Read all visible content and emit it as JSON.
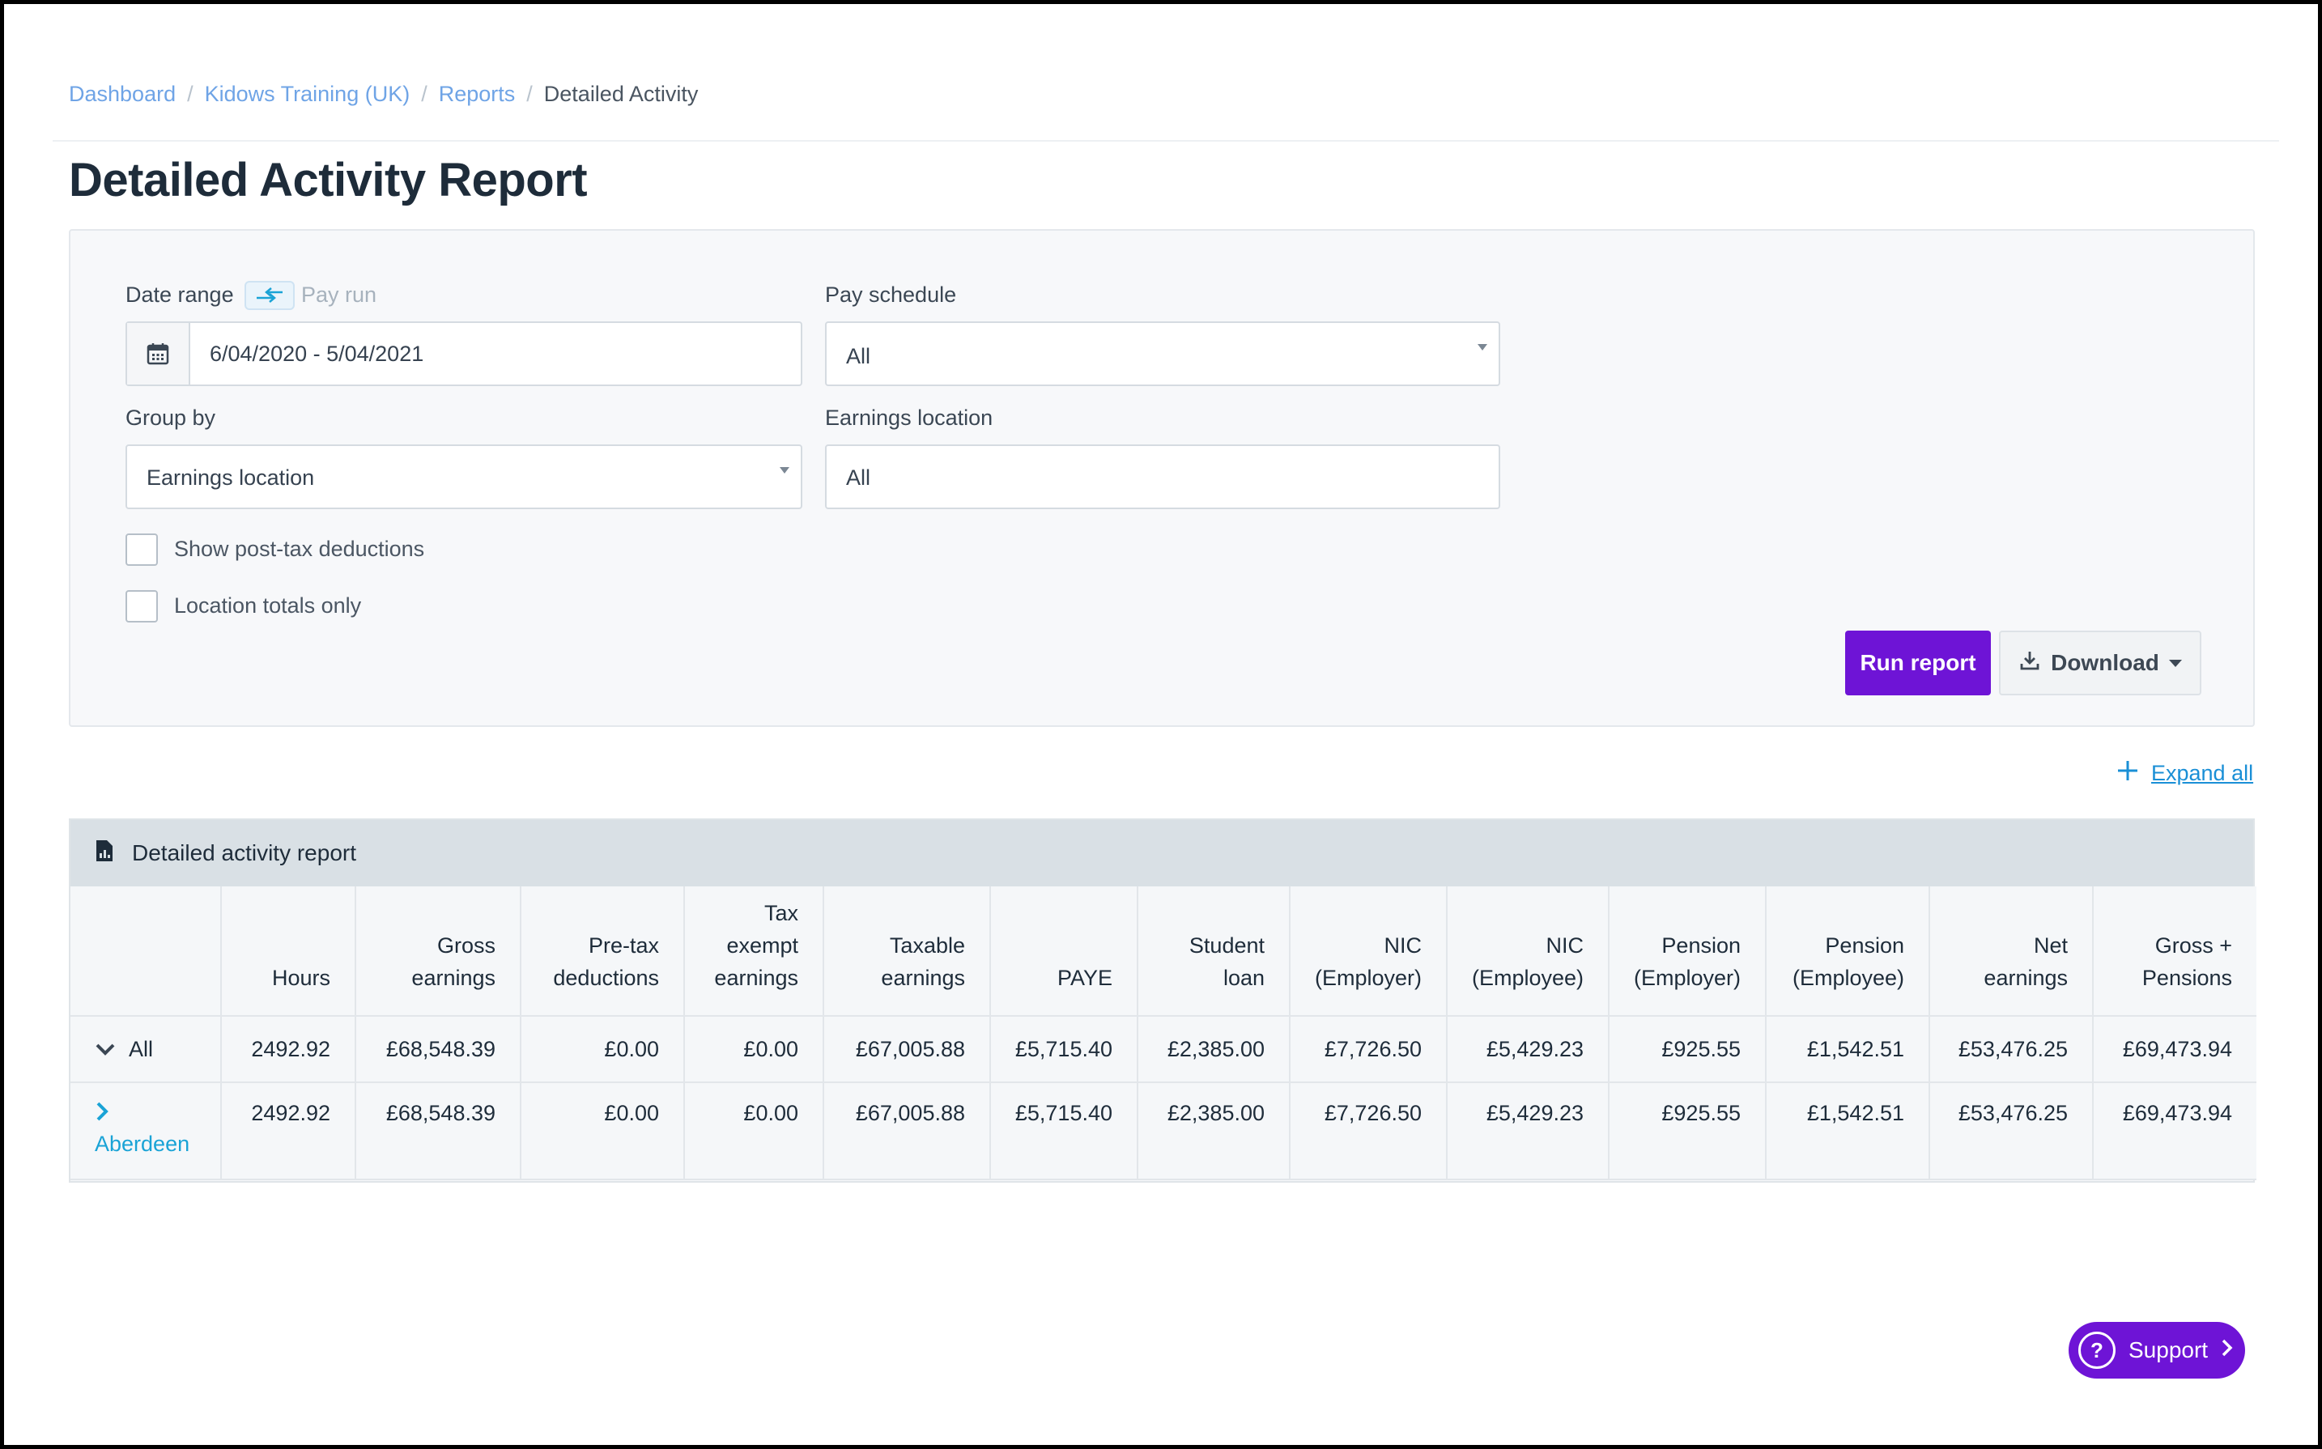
{
  "breadcrumb": {
    "items": [
      "Dashboard",
      "Kidows Training (UK)",
      "Reports"
    ],
    "current": "Detailed Activity",
    "separator": "/"
  },
  "page_title": "Detailed Activity Report",
  "filters": {
    "date_range_label": "Date range",
    "pay_run_label": "Pay run",
    "date_range_value": "6/04/2020 - 5/04/2021",
    "pay_schedule_label": "Pay schedule",
    "pay_schedule_value": "All",
    "group_by_label": "Group by",
    "group_by_value": "Earnings location",
    "earnings_location_label": "Earnings location",
    "earnings_location_value": "All",
    "show_post_tax_label": "Show post-tax deductions",
    "location_totals_label": "Location totals only",
    "run_report_label": "Run report",
    "download_label": "Download"
  },
  "expand_all_label": "Expand all",
  "report": {
    "title": "Detailed activity report",
    "columns": [
      [
        "",
        ""
      ],
      [
        "",
        "Hours"
      ],
      [
        "Gross",
        "earnings"
      ],
      [
        "Pre-tax",
        "deductions"
      ],
      [
        "Tax",
        "exempt",
        "earnings"
      ],
      [
        "Taxable",
        "earnings"
      ],
      [
        "",
        "PAYE"
      ],
      [
        "Student",
        "loan"
      ],
      [
        "NIC",
        "(Employer)"
      ],
      [
        "NIC",
        "(Employee)"
      ],
      [
        "Pension",
        "(Employer)"
      ],
      [
        "Pension",
        "(Employee)"
      ],
      [
        "Net",
        "earnings"
      ],
      [
        "Gross +",
        "Pensions"
      ]
    ],
    "rows": [
      {
        "label": "All",
        "values": [
          "2492.92",
          "£68,548.39",
          "£0.00",
          "£0.00",
          "£67,005.88",
          "£5,715.40",
          "£2,385.00",
          "£7,726.50",
          "£5,429.23",
          "£925.55",
          "£1,542.51",
          "£53,476.25",
          "£69,473.94"
        ]
      },
      {
        "label": "Aberdeen",
        "values": [
          "2492.92",
          "£68,548.39",
          "£0.00",
          "£0.00",
          "£67,005.88",
          "£5,715.40",
          "£2,385.00",
          "£7,726.50",
          "£5,429.23",
          "£925.55",
          "£1,542.51",
          "£53,476.25",
          "£69,473.94"
        ]
      }
    ]
  },
  "support_label": "Support",
  "colors": {
    "accent_purple": "#6e14d6",
    "link_blue": "#6fa4e6",
    "location_link": "#1aa3d6"
  }
}
